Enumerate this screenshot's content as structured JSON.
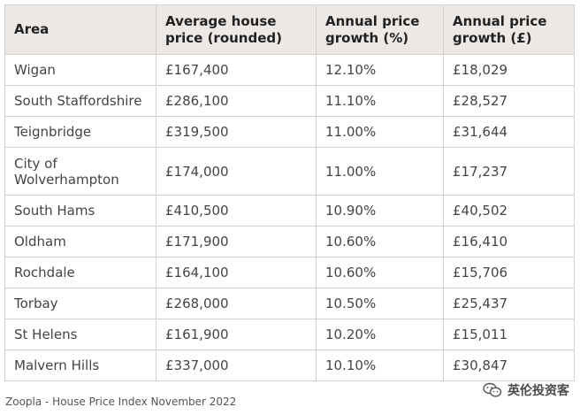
{
  "table": {
    "headers": [
      "Area",
      "Average house price (rounded)",
      "Annual price growth (%)",
      "Annual price growth (£)"
    ],
    "rows": [
      [
        "Wigan",
        "£167,400",
        "12.10%",
        "£18,029"
      ],
      [
        "South Staffordshire",
        "£286,100",
        "11.10%",
        "£28,527"
      ],
      [
        "Teignbridge",
        "£319,500",
        "11.00%",
        "£31,644"
      ],
      [
        "City of Wolverhampton",
        "£174,000",
        "11.00%",
        "£17,237"
      ],
      [
        "South Hams",
        "£410,500",
        "10.90%",
        "£40,502"
      ],
      [
        "Oldham",
        "£171,900",
        "10.60%",
        "£16,410"
      ],
      [
        "Rochdale",
        "£164,100",
        "10.60%",
        "£15,706"
      ],
      [
        "Torbay",
        "£268,000",
        "10.50%",
        "£25,437"
      ],
      [
        "St Helens",
        "£161,900",
        "10.20%",
        "£15,011"
      ],
      [
        "Malvern Hills",
        "£337,000",
        "10.10%",
        "£30,847"
      ]
    ]
  },
  "source": "Zoopla - House Price Index November 2022",
  "watermark": {
    "icon": "wechat-icon",
    "text": "英伦投资客"
  }
}
